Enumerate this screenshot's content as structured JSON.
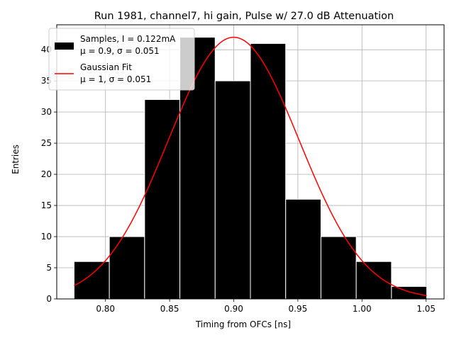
{
  "chart_data": {
    "type": "bar",
    "title": "Run 1981, channel7, hi gain, Pulse w/ 27.0 dB Attenuation",
    "xlabel": "Timing from OFCs [ns]",
    "ylabel": "Entries",
    "xlim": [
      0.762,
      1.064
    ],
    "ylim": [
      0,
      44
    ],
    "xticks": [
      0.8,
      0.85,
      0.9,
      0.95,
      1.0,
      1.05
    ],
    "xtick_labels": [
      "0.80",
      "0.85",
      "0.90",
      "0.95",
      "1.00",
      "1.05"
    ],
    "yticks": [
      0,
      5,
      10,
      15,
      20,
      25,
      30,
      35,
      40
    ],
    "ytick_labels": [
      "0",
      "5",
      "10",
      "15",
      "20",
      "25",
      "30",
      "35",
      "40"
    ],
    "grid": true,
    "legend_position": "top-left",
    "bin_edges": [
      0.7755,
      0.803,
      0.8305,
      0.858,
      0.8855,
      0.913,
      0.9405,
      0.968,
      0.9955,
      1.023,
      1.0505
    ],
    "counts": [
      6,
      10,
      32,
      42,
      35,
      41,
      16,
      10,
      6,
      2
    ],
    "bar_color": "#000000",
    "fit": {
      "mu": 0.9,
      "sigma": 0.051,
      "amplitude": 42,
      "x_range": [
        0.7755,
        1.0505
      ],
      "color": "#ff0000"
    },
    "legend": [
      {
        "line1": "Samples, I = 0.122mA",
        "line2": "μ = 0.9, σ = 0.051",
        "type": "patch",
        "color": "#000000"
      },
      {
        "line1": "Gaussian Fit",
        "line2": "μ = 1, σ = 0.051",
        "type": "line",
        "color": "#ff0000"
      }
    ]
  }
}
